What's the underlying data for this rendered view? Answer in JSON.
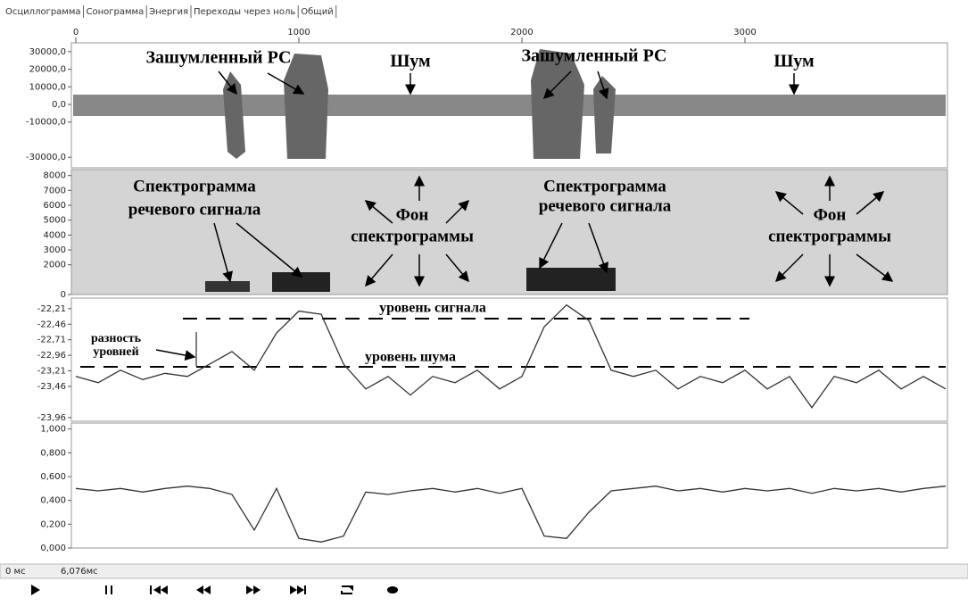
{
  "tabs": [
    "Осциллограмма",
    "Сонограмма",
    "Энергия",
    "Переходы через ноль",
    "Общий"
  ],
  "time_axis": {
    "xlim": [
      0,
      3900
    ],
    "ticks": [
      0,
      1000,
      2000,
      3000
    ]
  },
  "oscillogram": {
    "ylim": [
      -36000,
      35000
    ],
    "yticks": [
      {
        "value": 30000,
        "label": "30000,0"
      },
      {
        "value": 20000,
        "label": "20000,0"
      },
      {
        "value": 10000,
        "label": "10000,0"
      },
      {
        "value": 0,
        "label": "0,0"
      },
      {
        "value": -10000,
        "label": "-10000,0"
      },
      {
        "value": -30000,
        "label": "-30000,0"
      }
    ],
    "annotations": [
      "Зашумленный РС",
      "Шум",
      "Зашумленный РС",
      "Шум"
    ]
  },
  "spectrogram": {
    "ylim": [
      0,
      8400
    ],
    "yticks": [
      8000,
      7000,
      6000,
      5000,
      4000,
      3000,
      2000,
      0
    ],
    "annotations": [
      "Спектрограмма",
      "речевого сигнала",
      "Фон",
      "спектрограммы",
      "Спектрограмма",
      "речевого сигнала",
      "Фон",
      "спектрограммы"
    ]
  },
  "energy": {
    "ylim": [
      -24.02,
      -22.04
    ],
    "yticks": [
      {
        "value": -22.21,
        "label": "-22,21"
      },
      {
        "value": -22.46,
        "label": "-22,46"
      },
      {
        "value": -22.71,
        "label": "-22,71"
      },
      {
        "value": -22.96,
        "label": "-22,96"
      },
      {
        "value": -23.21,
        "label": "-23,21"
      },
      {
        "value": -23.46,
        "label": "-23,46"
      },
      {
        "value": -23.96,
        "label": "-23,96"
      }
    ],
    "x": [
      0,
      100,
      200,
      300,
      400,
      500,
      600,
      700,
      800,
      900,
      1000,
      1100,
      1200,
      1300,
      1400,
      1500,
      1600,
      1700,
      1800,
      1900,
      2000,
      2100,
      2200,
      2300,
      2400,
      2500,
      2600,
      2700,
      2800,
      2900,
      3000,
      3100,
      3200,
      3300,
      3400,
      3500,
      3600,
      3700,
      3800,
      3900
    ],
    "values": [
      -23.3,
      -23.4,
      -23.2,
      -23.35,
      -23.25,
      -23.3,
      -23.1,
      -22.9,
      -23.2,
      -22.6,
      -22.25,
      -22.3,
      -23.1,
      -23.5,
      -23.3,
      -23.6,
      -23.3,
      -23.4,
      -23.2,
      -23.5,
      -23.3,
      -22.5,
      -22.15,
      -22.4,
      -23.2,
      -23.3,
      -23.2,
      -23.5,
      -23.3,
      -23.4,
      -23.2,
      -23.5,
      -23.3,
      -23.8,
      -23.3,
      -23.4,
      -23.2,
      -23.5,
      -23.3,
      -23.5
    ],
    "annotations": [
      "уровень сигнала",
      "разность",
      "уровней",
      "уровень шума"
    ]
  },
  "ratio": {
    "ylim": [
      0,
      1.05
    ],
    "yticks": [
      {
        "value": 1,
        "label": "1,000"
      },
      {
        "value": 0.8,
        "label": "0,800"
      },
      {
        "value": 0.6,
        "label": "0,600"
      },
      {
        "value": 0.4,
        "label": "0,400"
      },
      {
        "value": 0.2,
        "label": "0,200"
      },
      {
        "value": 0,
        "label": "0,000"
      }
    ],
    "x": [
      0,
      100,
      200,
      300,
      400,
      500,
      600,
      700,
      800,
      900,
      1000,
      1100,
      1200,
      1300,
      1400,
      1500,
      1600,
      1700,
      1800,
      1900,
      2000,
      2100,
      2200,
      2300,
      2400,
      2500,
      2600,
      2700,
      2800,
      2900,
      3000,
      3100,
      3200,
      3300,
      3400,
      3500,
      3600,
      3700,
      3800,
      3900
    ],
    "values": [
      0.5,
      0.48,
      0.5,
      0.47,
      0.5,
      0.52,
      0.5,
      0.45,
      0.15,
      0.5,
      0.08,
      0.05,
      0.1,
      0.47,
      0.45,
      0.48,
      0.5,
      0.47,
      0.5,
      0.46,
      0.5,
      0.1,
      0.08,
      0.3,
      0.48,
      0.5,
      0.52,
      0.48,
      0.5,
      0.47,
      0.5,
      0.48,
      0.5,
      0.46,
      0.5,
      0.48,
      0.5,
      0.47,
      0.5,
      0.52
    ]
  },
  "status": {
    "start": "0 мс",
    "end": "6,076мс"
  }
}
